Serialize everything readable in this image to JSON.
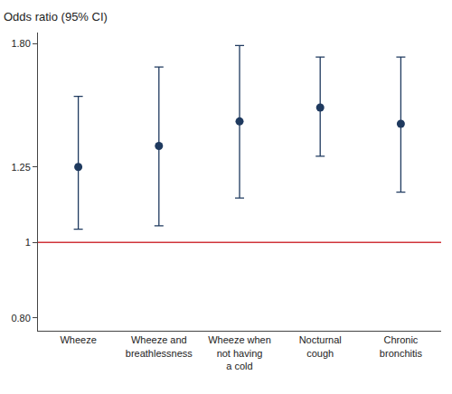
{
  "chart_data": {
    "type": "scatter",
    "y_label": "Odds ratio (95% CI)",
    "categories": [
      "Wheeze",
      "Wheeze and\nbreathlessness",
      "Wheeze when\nnot having\na cold",
      "Nocturnal\ncough",
      "Chronic\nbronchitis"
    ],
    "values": [
      1.25,
      1.33,
      1.43,
      1.49,
      1.42
    ],
    "lower": [
      1.04,
      1.05,
      1.14,
      1.29,
      1.16
    ],
    "upper": [
      1.54,
      1.68,
      1.79,
      1.73,
      1.73
    ],
    "color": "#1f3a5f",
    "marker": "circle",
    "log": "y",
    "grid": false,
    "ylim": [
      0.77,
      1.86
    ],
    "yticks": [
      {
        "value": 0.8,
        "label": "0.80"
      },
      1,
      1.25,
      {
        "value": 1.8,
        "label": "1.80"
      }
    ],
    "reference_line": {
      "value": 1,
      "color": "#d0343a"
    }
  }
}
